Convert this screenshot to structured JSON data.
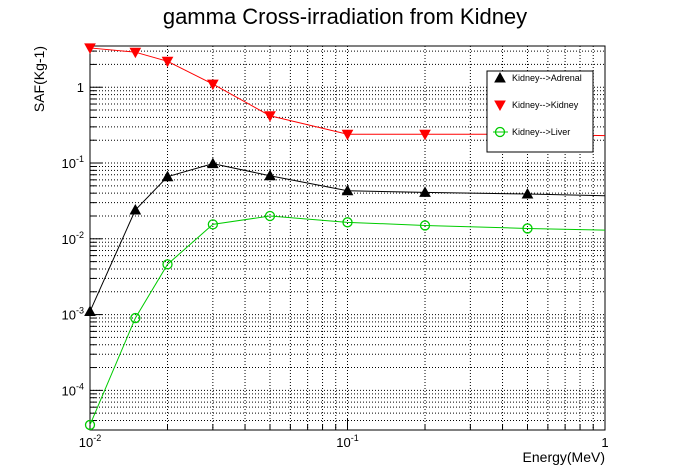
{
  "chart_data": {
    "type": "line",
    "title": "gamma Cross-irradiation from Kidney",
    "xlabel": "Energy(MeV)",
    "ylabel": "SAF(Kg-1)",
    "x_scale": "log",
    "y_scale": "log",
    "xlim": [
      0.01,
      1
    ],
    "ylim": [
      3e-05,
      3.5
    ],
    "grid": true,
    "legend_position": "top-right",
    "x_ticks": [
      {
        "base": "10",
        "exp": "-2"
      },
      {
        "base": "10",
        "exp": "-1"
      },
      {
        "base": "1",
        "exp": ""
      }
    ],
    "y_ticks": [
      {
        "base": "10",
        "exp": "-4"
      },
      {
        "base": "10",
        "exp": "-3"
      },
      {
        "base": "10",
        "exp": "-2"
      },
      {
        "base": "10",
        "exp": "-1"
      },
      {
        "base": "1",
        "exp": ""
      }
    ],
    "series": [
      {
        "name": "Kidney-->Adrenal",
        "color": "#000000",
        "marker": "triangle-up",
        "x": [
          0.01,
          0.015,
          0.02,
          0.03,
          0.05,
          0.1,
          0.2,
          0.5,
          1.0
        ],
        "y": [
          0.0011,
          0.024,
          0.066,
          0.098,
          0.068,
          0.043,
          0.041,
          0.039,
          0.037
        ]
      },
      {
        "name": "Kidney-->Kidney",
        "color": "#ff0000",
        "marker": "triangle-down",
        "x": [
          0.01,
          0.015,
          0.02,
          0.03,
          0.05,
          0.1,
          0.2,
          0.5,
          1.0
        ],
        "y": [
          3.3,
          2.9,
          2.2,
          1.1,
          0.42,
          0.24,
          0.24,
          0.24,
          0.23
        ]
      },
      {
        "name": "Kidney-->Liver",
        "color": "#00cc00",
        "marker": "circle-open",
        "x": [
          0.01,
          0.015,
          0.02,
          0.03,
          0.05,
          0.1,
          0.2,
          0.5,
          1.0
        ],
        "y": [
          3.5e-05,
          0.0009,
          0.0046,
          0.0155,
          0.02,
          0.0165,
          0.015,
          0.0137,
          0.013
        ]
      }
    ]
  }
}
